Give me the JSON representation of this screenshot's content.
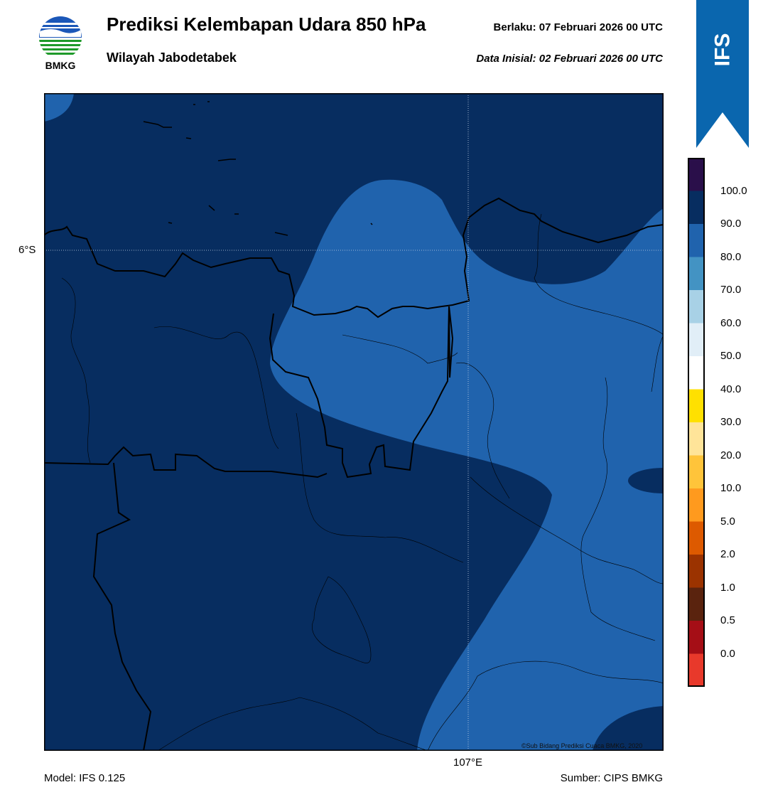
{
  "header": {
    "logo_text": "BMKG",
    "title": "Prediksi Kelembapan Udara 850 hPa",
    "subtitle": "Wilayah Jabodetabek",
    "valid_label": "Berlaku:  07 Februari 2026 00 UTC",
    "init_label": "Data Inisial:  02 Februari 2026 00 UTC"
  },
  "ribbon": {
    "text": "IFS",
    "color": "#0a66ae"
  },
  "map": {
    "lat_label": "6°S",
    "lon_label": "107°E",
    "copyright": "©Sub Bidang Prediksi Cuaca BMKG, 2020",
    "fill_colors": {
      "90-100": "#072d60",
      "80-90": "#2063ad"
    }
  },
  "footer": {
    "model": "Model: IFS 0.125",
    "source": "Sumber: CIPS BMKG"
  },
  "colorbar": {
    "ticks": [
      "100.0",
      "90.0",
      "80.0",
      "70.0",
      "60.0",
      "50.0",
      "40.0",
      "30.0",
      "20.0",
      "10.0",
      "5.0",
      "2.0",
      "1.0",
      "0.5",
      "0.0"
    ],
    "colors": [
      "#2a0f4a",
      "#072d60",
      "#2063ad",
      "#4393c3",
      "#a8d1e6",
      "#e1eef7",
      "#ffffff",
      "#ffe000",
      "#ffe499",
      "#ffc43a",
      "#ff9a1e",
      "#dd5a00",
      "#9b3300",
      "#5a230e",
      "#a50e16",
      "#e8392b"
    ]
  }
}
